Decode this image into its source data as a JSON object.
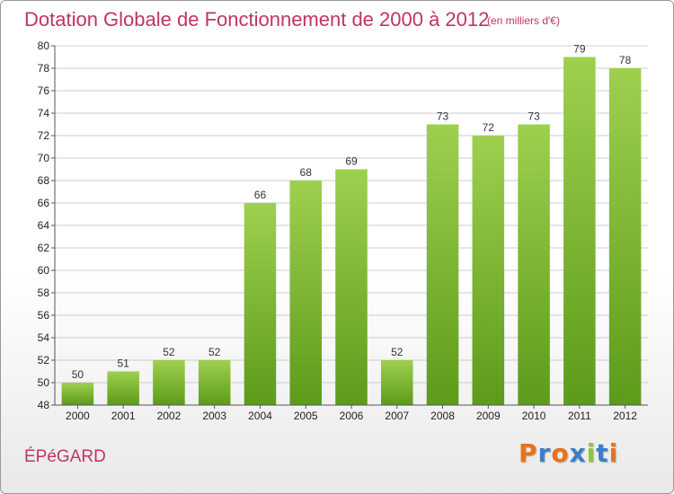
{
  "header": {
    "title": "Dotation Globale de Fonctionnement de 2000 à 2012",
    "unit_note": "(en milliers d'€)"
  },
  "commune": "ÉPéGARD",
  "logo": {
    "text": "Proxiti",
    "letter_colors": [
      "#e8731c",
      "#3b7fc4",
      "#e8731c",
      "#3b7fc4",
      "#8cc63e",
      "#3b7fc4",
      "#e8731c"
    ]
  },
  "colors": {
    "title": "#c0355d",
    "bar_light": "#9ed04e",
    "bar_dark": "#5d9b1a",
    "grid": "#cccccc",
    "axis": "#555555"
  },
  "chart_data": {
    "type": "bar",
    "title": "Dotation Globale de Fonctionnement de 2000 à 2012",
    "subtitle": "(en milliers d'€)",
    "categories": [
      "2000",
      "2001",
      "2002",
      "2003",
      "2004",
      "2005",
      "2006",
      "2007",
      "2008",
      "2009",
      "2010",
      "2011",
      "2012"
    ],
    "values": [
      50,
      51,
      52,
      52,
      66,
      68,
      69,
      52,
      73,
      72,
      73,
      79,
      78
    ],
    "xlabel": "",
    "ylabel": "",
    "ylim": [
      48,
      80
    ],
    "yticks": [
      48,
      50,
      52,
      54,
      56,
      58,
      60,
      62,
      64,
      66,
      68,
      70,
      72,
      74,
      76,
      78,
      80
    ],
    "grid": true,
    "legend": "none"
  }
}
